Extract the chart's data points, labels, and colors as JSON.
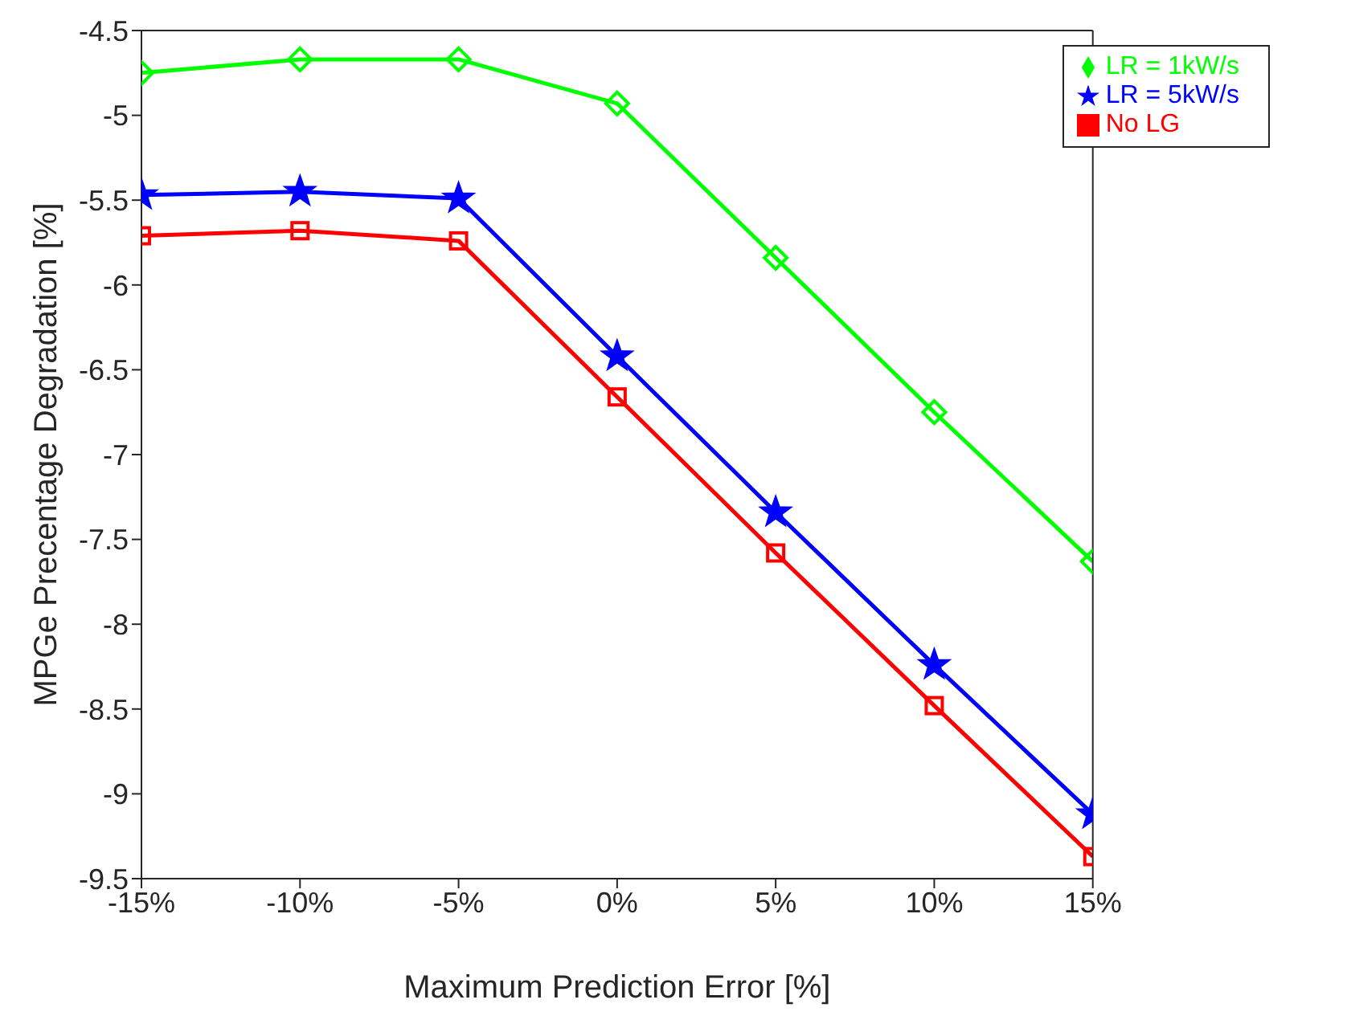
{
  "chart_data": {
    "type": "line",
    "xlabel": "Maximum Prediction Error [%]",
    "ylabel": "MPGe Precentage Degradation [%]",
    "x": [
      -15,
      -10,
      -5,
      0,
      5,
      10,
      15
    ],
    "xlim": [
      -15,
      15
    ],
    "xticks": [
      {
        "value": -15,
        "label": "-15%"
      },
      {
        "value": -10,
        "label": "-10%"
      },
      {
        "value": -5,
        "label": "-5%"
      },
      {
        "value": 0,
        "label": "0%"
      },
      {
        "value": 5,
        "label": "5%"
      },
      {
        "value": 10,
        "label": "10%"
      },
      {
        "value": 15,
        "label": "15%"
      }
    ],
    "ylim": [
      -9.5,
      -4.5
    ],
    "yticks": [
      -9.5,
      -9,
      -8.5,
      -8,
      -7.5,
      -7,
      -6.5,
      -6,
      -5.5,
      -5,
      -4.5
    ],
    "grid": false,
    "legend": "top right",
    "series": [
      {
        "name": "No LG",
        "color": "#ff0000",
        "marker": "square",
        "values": [
          -5.71,
          -5.68,
          -5.74,
          -6.66,
          -7.58,
          -8.48,
          -9.37
        ]
      },
      {
        "name": "LR = 5kW/s",
        "color": "#0000ff",
        "marker": "star",
        "values": [
          -5.47,
          -5.45,
          -5.49,
          -6.42,
          -7.34,
          -8.24,
          -9.12
        ]
      },
      {
        "name": "LR = 1kW/s",
        "color": "#00ff00",
        "marker": "diamond",
        "values": [
          -4.75,
          -4.67,
          -4.67,
          -4.93,
          -5.84,
          -6.75,
          -7.63
        ]
      }
    ]
  }
}
